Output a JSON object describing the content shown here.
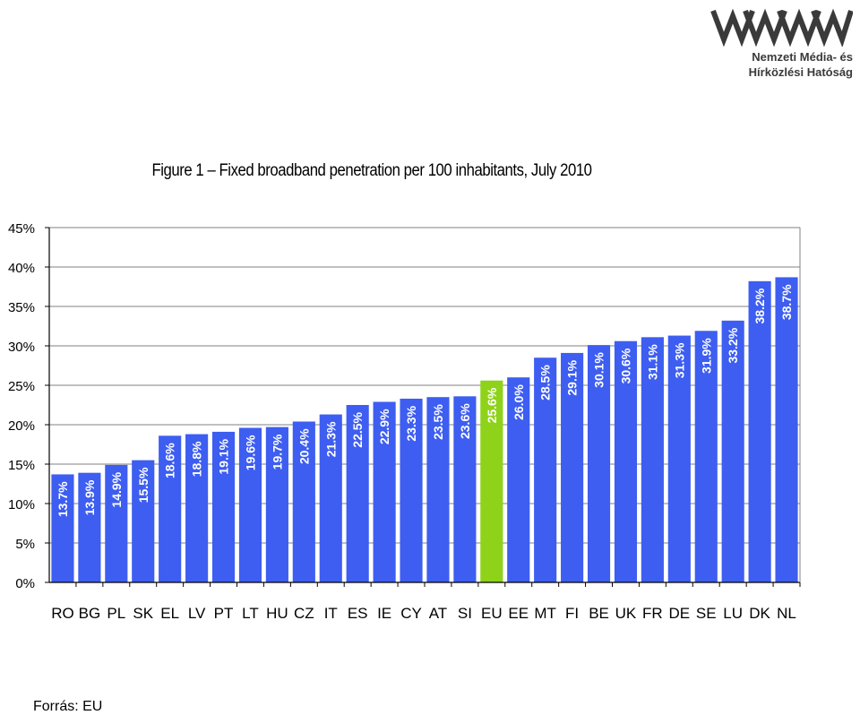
{
  "logo": {
    "line1": "Nemzeti Média- és",
    "line2": "Hírközlési Hatóság",
    "color": "#3a3a3a"
  },
  "source_note": "Forrás: EU",
  "chart_data": {
    "type": "bar",
    "title": "Figure 1 – Fixed broadband penetration per 100 inhabitants, July 2010",
    "xlabel": "",
    "ylabel": "",
    "ylim": [
      0,
      45
    ],
    "yticks": [
      "0%",
      "5%",
      "10%",
      "15%",
      "20%",
      "25%",
      "30%",
      "35%",
      "40%",
      "45%"
    ],
    "grid": true,
    "categories": [
      "RO",
      "BG",
      "PL",
      "SK",
      "EL",
      "LV",
      "PT",
      "LT",
      "HU",
      "CZ",
      "IT",
      "ES",
      "IE",
      "CY",
      "AT",
      "SI",
      "EU",
      "EE",
      "MT",
      "FI",
      "BE",
      "UK",
      "FR",
      "DE",
      "SE",
      "LU",
      "DK",
      "NL"
    ],
    "values": [
      13.7,
      13.9,
      14.9,
      15.5,
      18.6,
      18.8,
      19.1,
      19.6,
      19.7,
      20.4,
      21.3,
      22.5,
      22.9,
      23.3,
      23.5,
      23.6,
      25.6,
      26.0,
      28.5,
      29.1,
      30.1,
      30.6,
      31.1,
      31.3,
      31.9,
      33.2,
      38.2,
      38.7
    ],
    "data_labels": [
      "13.7%",
      "13.9%",
      "14.9%",
      "15.5%",
      "18.6%",
      "18.8%",
      "19.1%",
      "19.6%",
      "19.7%",
      "20.4%",
      "21.3%",
      "22.5%",
      "22.9%",
      "23.3%",
      "23.5%",
      "23.6%",
      "25.6%",
      "26.0%",
      "28.5%",
      "29.1%",
      "30.1%",
      "30.6%",
      "31.1%",
      "31.3%",
      "31.9%",
      "33.2%",
      "38.2%",
      "38.7%"
    ],
    "highlight": "EU",
    "colors": {
      "bar": "#3d5ef0",
      "highlight": "#8ed21a",
      "grid": "#808080",
      "axis": "#000000"
    }
  }
}
